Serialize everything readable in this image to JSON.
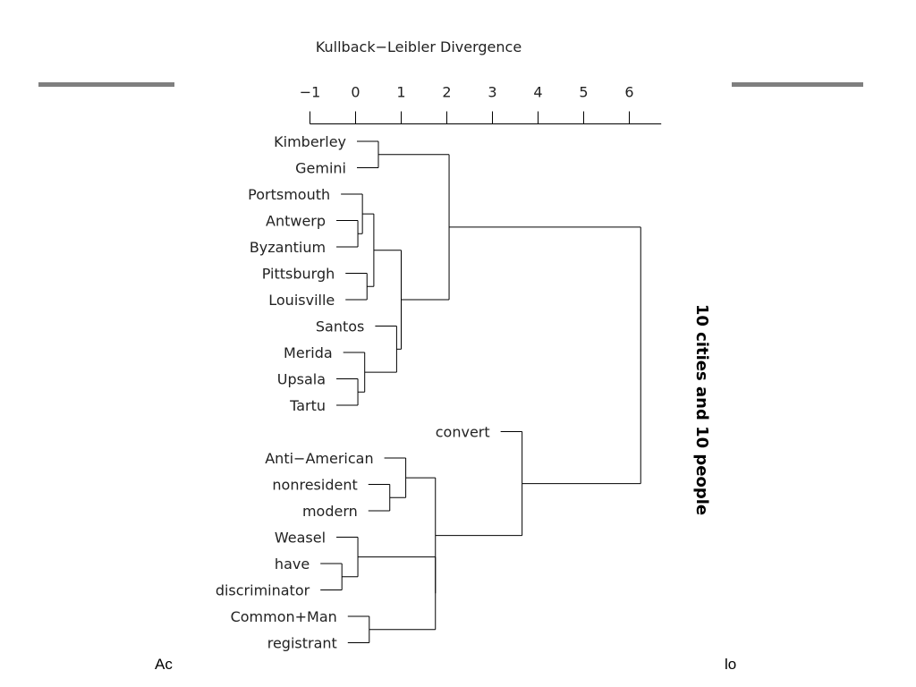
{
  "slide": {
    "text_left": "Ac",
    "text_right": "lo"
  },
  "chart_data": {
    "type": "dendrogram",
    "axis_title": "Kullback−Leibler Divergence",
    "side_title": "10 cities and 10 people",
    "axis": {
      "min": -1,
      "max": 6.7,
      "ticks": [
        -1,
        0,
        1,
        2,
        3,
        4,
        5,
        6
      ],
      "tick_labels": [
        "−1",
        "0",
        "1",
        "2",
        "3",
        "4",
        "5",
        "6"
      ]
    },
    "leaves": [
      "Kimberley",
      "Gemini",
      "Portsmouth",
      "Antwerp",
      "Byzantium",
      "Pittsburgh",
      "Louisville",
      "Santos",
      "Merida",
      "Upsala",
      "Tartu",
      "convert",
      "Anti−American",
      "nonresident",
      "modern",
      "Weasel",
      "have",
      "discriminator",
      "Common+Man",
      "registrant"
    ],
    "merges": [
      {
        "a": "Kimberley",
        "b": "Gemini",
        "height": 0.5,
        "name": "m1"
      },
      {
        "a": "Antwerp",
        "b": "Byzantium",
        "height": 0.05,
        "name": "m2"
      },
      {
        "a": "Portsmouth",
        "b": "m2",
        "height": 0.15,
        "name": "m3"
      },
      {
        "a": "Pittsburgh",
        "b": "Louisville",
        "height": 0.25,
        "name": "m4"
      },
      {
        "a": "m3",
        "b": "m4",
        "height": 0.4,
        "name": "m5"
      },
      {
        "a": "Upsala",
        "b": "Tartu",
        "height": 0.05,
        "name": "m6"
      },
      {
        "a": "Merida",
        "b": "m6",
        "height": 0.2,
        "name": "m7"
      },
      {
        "a": "Santos",
        "b": "m7",
        "height": 0.9,
        "name": "m8"
      },
      {
        "a": "m5",
        "b": "m8",
        "height": 1.0,
        "name": "m9"
      },
      {
        "a": "m1",
        "b": "m9",
        "height": 2.05,
        "name": "m10"
      },
      {
        "a": "nonresident",
        "b": "modern",
        "height": 0.75,
        "name": "m11"
      },
      {
        "a": "Anti−American",
        "b": "m11",
        "height": 1.1,
        "name": "m12"
      },
      {
        "a": "have",
        "b": "discriminator",
        "height": -0.3,
        "name": "m13"
      },
      {
        "a": "Weasel",
        "b": "m13",
        "height": 0.05,
        "name": "m14"
      },
      {
        "a": "Common+Man",
        "b": "registrant",
        "height": 0.3,
        "name": "m15"
      },
      {
        "a": "m14",
        "b": "m15",
        "height": 1.75,
        "name": "m16"
      },
      {
        "a": "m12",
        "b": "m16",
        "height": 1.75,
        "name": "m17"
      },
      {
        "a": "convert",
        "b": "m17",
        "height": 3.65,
        "name": "m18"
      },
      {
        "a": "m10",
        "b": "m18",
        "height": 6.25,
        "name": "root"
      }
    ]
  }
}
